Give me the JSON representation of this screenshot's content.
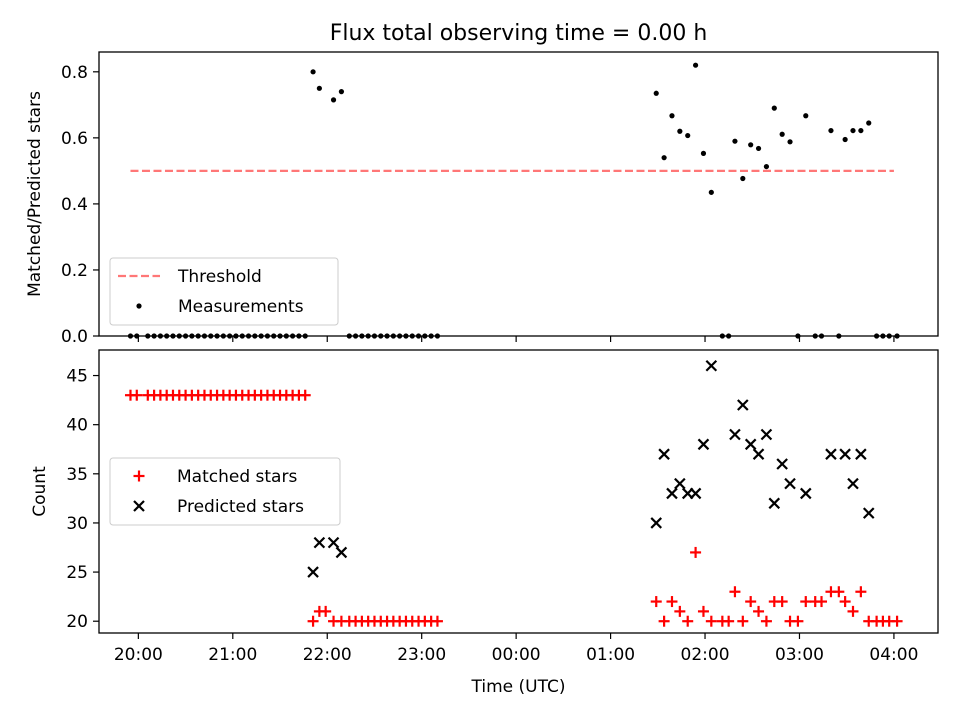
{
  "title": "Flux total observing time = 0.00 h",
  "chart_data": [
    {
      "type": "scatter",
      "ylabel": "Matched/Predicted stars",
      "xlim": [
        "19:35",
        "04:28"
      ],
      "ylim": [
        0,
        0.86
      ],
      "yticks": [
        "0.0",
        "0.2",
        "0.4",
        "0.6",
        "0.8"
      ],
      "threshold": {
        "name": "Threshold",
        "value": 0.5,
        "x_start": "19:55",
        "x_end": "04:00",
        "color": "#ff7777"
      },
      "series": [
        {
          "name": "Measurements",
          "color": "#000000",
          "points": [
            [
              "19:55",
              0.0
            ],
            [
              "19:59",
              0.0
            ],
            [
              "20:06",
              0.0
            ],
            [
              "20:10",
              0.0
            ],
            [
              "20:14",
              0.0
            ],
            [
              "20:18",
              0.0
            ],
            [
              "20:22",
              0.0
            ],
            [
              "20:26",
              0.0
            ],
            [
              "20:30",
              0.0
            ],
            [
              "20:34",
              0.0
            ],
            [
              "20:38",
              0.0
            ],
            [
              "20:42",
              0.0
            ],
            [
              "20:46",
              0.0
            ],
            [
              "20:50",
              0.0
            ],
            [
              "20:54",
              0.0
            ],
            [
              "20:58",
              0.0
            ],
            [
              "21:02",
              0.0
            ],
            [
              "21:06",
              0.0
            ],
            [
              "21:10",
              0.0
            ],
            [
              "21:14",
              0.0
            ],
            [
              "21:18",
              0.0
            ],
            [
              "21:22",
              0.0
            ],
            [
              "21:26",
              0.0
            ],
            [
              "21:30",
              0.0
            ],
            [
              "21:34",
              0.0
            ],
            [
              "21:38",
              0.0
            ],
            [
              "21:42",
              0.0
            ],
            [
              "21:46",
              0.0
            ],
            [
              "21:51",
              0.8
            ],
            [
              "21:55",
              0.75
            ],
            [
              "22:04",
              0.715
            ],
            [
              "22:09",
              0.74
            ],
            [
              "22:14",
              0.0
            ],
            [
              "22:18",
              0.0
            ],
            [
              "22:22",
              0.0
            ],
            [
              "22:26",
              0.0
            ],
            [
              "22:30",
              0.0
            ],
            [
              "22:34",
              0.0
            ],
            [
              "22:38",
              0.0
            ],
            [
              "22:42",
              0.0
            ],
            [
              "22:46",
              0.0
            ],
            [
              "22:50",
              0.0
            ],
            [
              "22:54",
              0.0
            ],
            [
              "22:58",
              0.0
            ],
            [
              "23:02",
              0.0
            ],
            [
              "23:06",
              0.0
            ],
            [
              "23:10",
              0.0
            ],
            [
              "01:29",
              0.735
            ],
            [
              "01:34",
              0.54
            ],
            [
              "01:39",
              0.667
            ],
            [
              "01:44",
              0.62
            ],
            [
              "01:49",
              0.607
            ],
            [
              "01:54",
              0.82
            ],
            [
              "01:59",
              0.553
            ],
            [
              "02:04",
              0.435
            ],
            [
              "02:11",
              0.0
            ],
            [
              "02:15",
              0.0
            ],
            [
              "02:19",
              0.59
            ],
            [
              "02:24",
              0.477
            ],
            [
              "02:29",
              0.579
            ],
            [
              "02:34",
              0.568
            ],
            [
              "02:39",
              0.513
            ],
            [
              "02:44",
              0.69
            ],
            [
              "02:49",
              0.611
            ],
            [
              "02:54",
              0.588
            ],
            [
              "02:59",
              0.0
            ],
            [
              "03:04",
              0.667
            ],
            [
              "03:10",
              0.0
            ],
            [
              "03:14",
              0.0
            ],
            [
              "03:20",
              0.622
            ],
            [
              "03:25",
              0.0
            ],
            [
              "03:29",
              0.595
            ],
            [
              "03:34",
              0.622
            ],
            [
              "03:39",
              0.622
            ],
            [
              "03:44",
              0.645
            ],
            [
              "03:49",
              0.0
            ],
            [
              "03:53",
              0.0
            ],
            [
              "03:57",
              0.0
            ],
            [
              "04:02",
              0.0
            ]
          ]
        }
      ],
      "legend": {
        "location": "lower-left",
        "entries": [
          "Threshold",
          "Measurements"
        ]
      }
    },
    {
      "type": "scatter",
      "xlabel": "Time (UTC)",
      "ylabel": "Count",
      "xlim": [
        "19:35",
        "04:28"
      ],
      "ylim": [
        18.8,
        47.6
      ],
      "xticks": [
        "20:00",
        "21:00",
        "22:00",
        "23:00",
        "00:00",
        "01:00",
        "02:00",
        "03:00",
        "04:00"
      ],
      "yticks": [
        "20",
        "25",
        "30",
        "35",
        "40",
        "45"
      ],
      "series": [
        {
          "name": "Matched stars",
          "marker": "plus",
          "color": "#ff0000",
          "points": [
            [
              "19:55",
              43
            ],
            [
              "19:59",
              43
            ],
            [
              "20:06",
              43
            ],
            [
              "20:10",
              43
            ],
            [
              "20:14",
              43
            ],
            [
              "20:18",
              43
            ],
            [
              "20:22",
              43
            ],
            [
              "20:26",
              43
            ],
            [
              "20:30",
              43
            ],
            [
              "20:34",
              43
            ],
            [
              "20:38",
              43
            ],
            [
              "20:42",
              43
            ],
            [
              "20:46",
              43
            ],
            [
              "20:50",
              43
            ],
            [
              "20:54",
              43
            ],
            [
              "20:58",
              43
            ],
            [
              "21:02",
              43
            ],
            [
              "21:06",
              43
            ],
            [
              "21:10",
              43
            ],
            [
              "21:14",
              43
            ],
            [
              "21:18",
              43
            ],
            [
              "21:22",
              43
            ],
            [
              "21:26",
              43
            ],
            [
              "21:30",
              43
            ],
            [
              "21:34",
              43
            ],
            [
              "21:38",
              43
            ],
            [
              "21:42",
              43
            ],
            [
              "21:46",
              43
            ],
            [
              "21:51",
              20
            ],
            [
              "21:55",
              21
            ],
            [
              "21:59",
              21
            ],
            [
              "22:04",
              20
            ],
            [
              "22:09",
              20
            ],
            [
              "22:14",
              20
            ],
            [
              "22:18",
              20
            ],
            [
              "22:22",
              20
            ],
            [
              "22:26",
              20
            ],
            [
              "22:30",
              20
            ],
            [
              "22:34",
              20
            ],
            [
              "22:38",
              20
            ],
            [
              "22:42",
              20
            ],
            [
              "22:46",
              20
            ],
            [
              "22:50",
              20
            ],
            [
              "22:54",
              20
            ],
            [
              "22:58",
              20
            ],
            [
              "23:02",
              20
            ],
            [
              "23:06",
              20
            ],
            [
              "23:10",
              20
            ],
            [
              "01:29",
              22
            ],
            [
              "01:34",
              20
            ],
            [
              "01:39",
              22
            ],
            [
              "01:44",
              21
            ],
            [
              "01:49",
              20
            ],
            [
              "01:54",
              27
            ],
            [
              "01:59",
              21
            ],
            [
              "02:04",
              20
            ],
            [
              "02:11",
              20
            ],
            [
              "02:15",
              20
            ],
            [
              "02:19",
              23
            ],
            [
              "02:24",
              20
            ],
            [
              "02:29",
              22
            ],
            [
              "02:34",
              21
            ],
            [
              "02:39",
              20
            ],
            [
              "02:44",
              22
            ],
            [
              "02:49",
              22
            ],
            [
              "02:54",
              20
            ],
            [
              "02:59",
              20
            ],
            [
              "03:04",
              22
            ],
            [
              "03:10",
              22
            ],
            [
              "03:14",
              22
            ],
            [
              "03:20",
              23
            ],
            [
              "03:25",
              23
            ],
            [
              "03:29",
              22
            ],
            [
              "03:34",
              21
            ],
            [
              "03:39",
              23
            ],
            [
              "03:44",
              20
            ],
            [
              "03:49",
              20
            ],
            [
              "03:53",
              20
            ],
            [
              "03:57",
              20
            ],
            [
              "04:02",
              20
            ]
          ]
        },
        {
          "name": "Predicted stars",
          "marker": "x",
          "color": "#000000",
          "points": [
            [
              "21:51",
              25
            ],
            [
              "21:55",
              28
            ],
            [
              "22:04",
              28
            ],
            [
              "22:09",
              27
            ],
            [
              "01:29",
              30
            ],
            [
              "01:34",
              37
            ],
            [
              "01:39",
              33
            ],
            [
              "01:44",
              34
            ],
            [
              "01:49",
              33
            ],
            [
              "01:54",
              33
            ],
            [
              "01:59",
              38
            ],
            [
              "02:04",
              46
            ],
            [
              "02:19",
              39
            ],
            [
              "02:24",
              42
            ],
            [
              "02:29",
              38
            ],
            [
              "02:34",
              37
            ],
            [
              "02:39",
              39
            ],
            [
              "02:44",
              32
            ],
            [
              "02:49",
              36
            ],
            [
              "02:54",
              34
            ],
            [
              "03:04",
              33
            ],
            [
              "03:20",
              37
            ],
            [
              "03:29",
              37
            ],
            [
              "03:34",
              34
            ],
            [
              "03:39",
              37
            ],
            [
              "03:44",
              31
            ]
          ]
        }
      ],
      "legend": {
        "location": "center-left",
        "entries": [
          "Matched stars",
          "Predicted stars"
        ]
      }
    }
  ]
}
